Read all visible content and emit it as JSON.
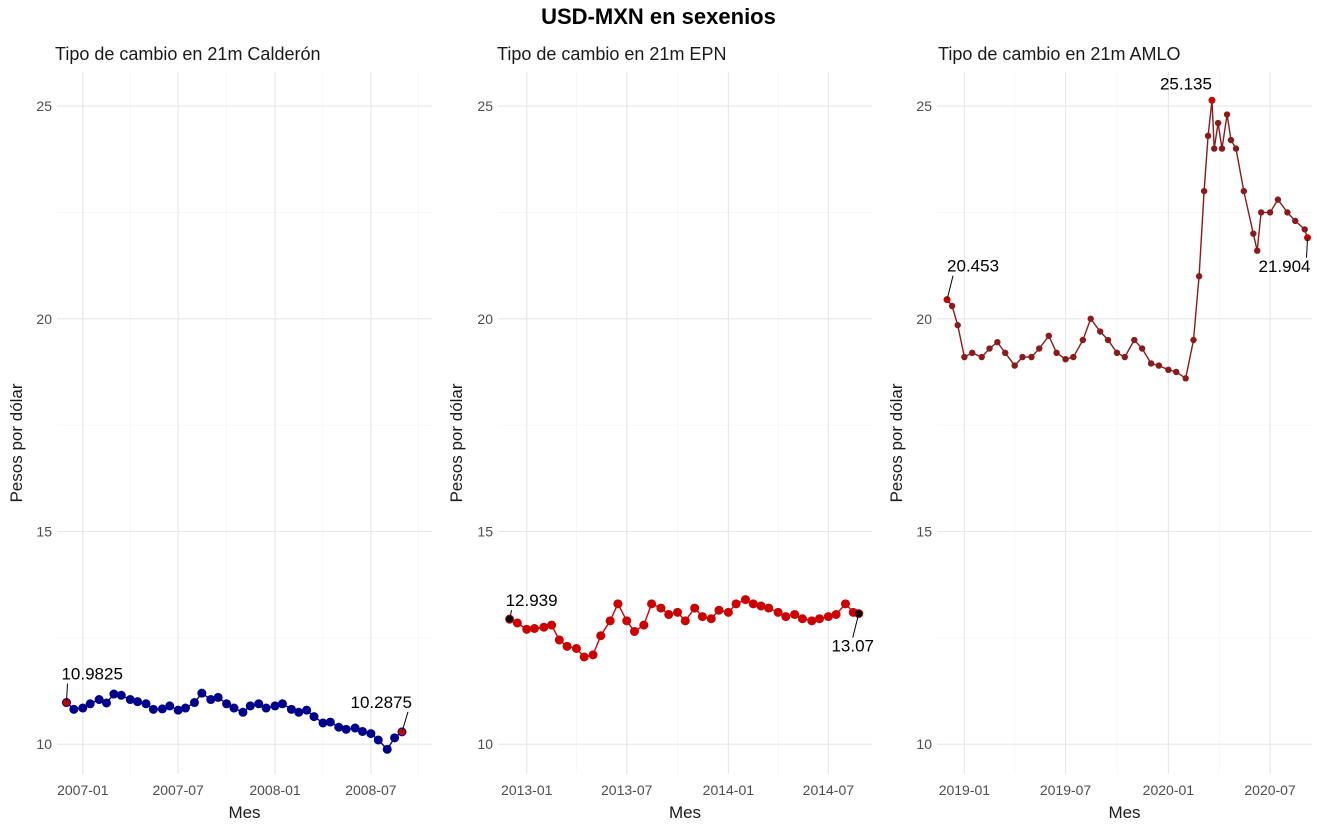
{
  "title": "USD-MXN en sexenios",
  "chart_data": [
    {
      "type": "line",
      "title": "Tipo de cambio en 21m Calderón",
      "xlabel": "Mes",
      "ylabel": "Pesos por dólar",
      "ylim": [
        9.3,
        25.8
      ],
      "yticks": [
        10,
        15,
        20,
        25
      ],
      "ytick_labels": [
        "10",
        "15",
        "20",
        "25"
      ],
      "xlim": [
        "2006-11-13",
        "2008-10-25"
      ],
      "xticks": [
        "2007-01-01",
        "2007-07-01",
        "2008-01-01",
        "2008-07-01"
      ],
      "xtick_labels": [
        "2007-01",
        "2007-07",
        "2008-01",
        "2008-07"
      ],
      "line_color": "#00008b",
      "start_marker_color": "#cc0000",
      "end_marker_color": "#cc0000",
      "x": [
        "2006-12-01",
        "2006-12-15",
        "2007-01-01",
        "2007-01-15",
        "2007-02-01",
        "2007-02-15",
        "2007-03-01",
        "2007-03-15",
        "2007-04-01",
        "2007-04-15",
        "2007-05-01",
        "2007-05-15",
        "2007-06-01",
        "2007-06-15",
        "2007-07-01",
        "2007-07-15",
        "2007-08-01",
        "2007-08-15",
        "2007-09-01",
        "2007-09-15",
        "2007-10-01",
        "2007-10-15",
        "2007-11-01",
        "2007-11-15",
        "2007-12-01",
        "2007-12-15",
        "2008-01-01",
        "2008-01-15",
        "2008-02-01",
        "2008-02-15",
        "2008-03-01",
        "2008-03-15",
        "2008-04-01",
        "2008-04-15",
        "2008-05-01",
        "2008-05-15",
        "2008-06-01",
        "2008-06-15",
        "2008-07-01",
        "2008-07-15",
        "2008-08-01",
        "2008-08-15",
        "2008-08-29"
      ],
      "y": [
        10.98,
        10.82,
        10.85,
        10.95,
        11.05,
        10.97,
        11.18,
        11.15,
        11.05,
        11.0,
        10.95,
        10.82,
        10.83,
        10.9,
        10.8,
        10.85,
        10.98,
        11.2,
        11.05,
        11.1,
        10.95,
        10.85,
        10.75,
        10.9,
        10.95,
        10.85,
        10.9,
        10.95,
        10.82,
        10.75,
        10.8,
        10.65,
        10.5,
        10.52,
        10.4,
        10.35,
        10.38,
        10.3,
        10.25,
        10.1,
        9.88,
        10.15,
        10.29
      ],
      "annotations": [
        {
          "text": "10.9825",
          "x": "2006-12-01",
          "y": 10.98
        },
        {
          "text": "10.2875",
          "x": "2008-08-29",
          "y": 10.29
        }
      ]
    },
    {
      "type": "line",
      "title": "Tipo de cambio en 21m EPN",
      "xlabel": "Mes",
      "ylabel": "Pesos por dólar",
      "ylim": [
        9.3,
        25.8
      ],
      "yticks": [
        10,
        15,
        20,
        25
      ],
      "ytick_labels": [
        "10",
        "15",
        "20",
        "25"
      ],
      "xlim": [
        "2012-11-10",
        "2014-09-18"
      ],
      "xticks": [
        "2013-01-01",
        "2013-07-01",
        "2014-01-01",
        "2014-07-01"
      ],
      "xtick_labels": [
        "2013-01",
        "2013-07",
        "2014-01",
        "2014-07"
      ],
      "line_color": "#cc0000",
      "start_marker_color": "#000000",
      "end_marker_color": "#000000",
      "x": [
        "2012-12-01",
        "2012-12-15",
        "2013-01-01",
        "2013-01-15",
        "2013-02-01",
        "2013-02-15",
        "2013-03-01",
        "2013-03-15",
        "2013-04-01",
        "2013-04-15",
        "2013-05-01",
        "2013-05-15",
        "2013-06-01",
        "2013-06-15",
        "2013-07-01",
        "2013-07-15",
        "2013-08-01",
        "2013-08-15",
        "2013-09-01",
        "2013-09-15",
        "2013-10-01",
        "2013-10-15",
        "2013-11-01",
        "2013-11-15",
        "2013-12-01",
        "2013-12-15",
        "2014-01-01",
        "2014-01-15",
        "2014-02-01",
        "2014-02-15",
        "2014-03-01",
        "2014-03-15",
        "2014-04-01",
        "2014-04-15",
        "2014-05-01",
        "2014-05-15",
        "2014-06-01",
        "2014-06-15",
        "2014-07-01",
        "2014-07-15",
        "2014-08-01",
        "2014-08-15",
        "2014-08-25"
      ],
      "y": [
        12.94,
        12.85,
        12.7,
        12.72,
        12.75,
        12.8,
        12.45,
        12.3,
        12.25,
        12.05,
        12.1,
        12.55,
        12.9,
        13.3,
        12.9,
        12.65,
        12.8,
        13.3,
        13.2,
        13.05,
        13.1,
        12.9,
        13.2,
        13.0,
        12.95,
        13.15,
        13.1,
        13.3,
        13.4,
        13.3,
        13.25,
        13.2,
        13.1,
        13.0,
        13.05,
        12.95,
        12.9,
        12.95,
        13.0,
        13.05,
        13.3,
        13.1,
        13.07
      ],
      "annotations": [
        {
          "text": "12.939",
          "x": "2012-12-01",
          "y": 12.94
        },
        {
          "text": "13.07",
          "x": "2014-08-25",
          "y": 13.07
        }
      ]
    },
    {
      "type": "line",
      "title": "Tipo de cambio en 21m AMLO",
      "xlabel": "Mes",
      "ylabel": "Pesos por dólar",
      "ylim": [
        9.3,
        25.8
      ],
      "yticks": [
        10,
        15,
        20,
        25
      ],
      "ytick_labels": [
        "10",
        "15",
        "20",
        "25"
      ],
      "xlim": [
        "2018-11-13",
        "2020-09-14"
      ],
      "xticks": [
        "2019-01-01",
        "2019-07-01",
        "2020-01-01",
        "2020-07-01"
      ],
      "xtick_labels": [
        "2019-01",
        "2019-07",
        "2020-01",
        "2020-07"
      ],
      "line_color": "#8b1a1a",
      "start_marker_color": "#cc0000",
      "end_marker_color": "#cc0000",
      "x": [
        "2018-12-01",
        "2018-12-10",
        "2018-12-20",
        "2019-01-01",
        "2019-01-15",
        "2019-02-01",
        "2019-02-15",
        "2019-03-01",
        "2019-03-15",
        "2019-04-01",
        "2019-04-15",
        "2019-05-01",
        "2019-05-15",
        "2019-06-01",
        "2019-06-15",
        "2019-07-01",
        "2019-07-15",
        "2019-08-01",
        "2019-08-15",
        "2019-09-01",
        "2019-09-15",
        "2019-10-01",
        "2019-10-15",
        "2019-11-01",
        "2019-11-15",
        "2019-12-01",
        "2019-12-15",
        "2020-01-01",
        "2020-01-15",
        "2020-02-01",
        "2020-02-15",
        "2020-02-25",
        "2020-03-05",
        "2020-03-12",
        "2020-03-19",
        "2020-03-23",
        "2020-03-30",
        "2020-04-06",
        "2020-04-15",
        "2020-04-22",
        "2020-05-01",
        "2020-05-15",
        "2020-06-01",
        "2020-06-08",
        "2020-06-15",
        "2020-07-01",
        "2020-07-15",
        "2020-08-01",
        "2020-08-15",
        "2020-09-01",
        "2020-09-06"
      ],
      "y": [
        20.45,
        20.3,
        19.85,
        19.1,
        19.2,
        19.1,
        19.3,
        19.45,
        19.2,
        18.9,
        19.1,
        19.1,
        19.3,
        19.6,
        19.2,
        19.05,
        19.1,
        19.5,
        20.0,
        19.7,
        19.5,
        19.2,
        19.1,
        19.5,
        19.3,
        18.95,
        18.9,
        18.8,
        18.75,
        18.6,
        19.5,
        21.0,
        23.0,
        24.3,
        25.135,
        24.0,
        24.6,
        24.0,
        24.8,
        24.2,
        24.0,
        23.0,
        22.0,
        21.6,
        22.5,
        22.5,
        22.8,
        22.5,
        22.3,
        22.1,
        21.904
      ],
      "annotations": [
        {
          "text": "20.453",
          "x": "2018-12-01",
          "y": 20.45
        },
        {
          "text": "25.135",
          "x": "2020-03-19",
          "y": 25.135
        },
        {
          "text": "21.904",
          "x": "2020-09-06",
          "y": 21.904
        }
      ]
    }
  ]
}
